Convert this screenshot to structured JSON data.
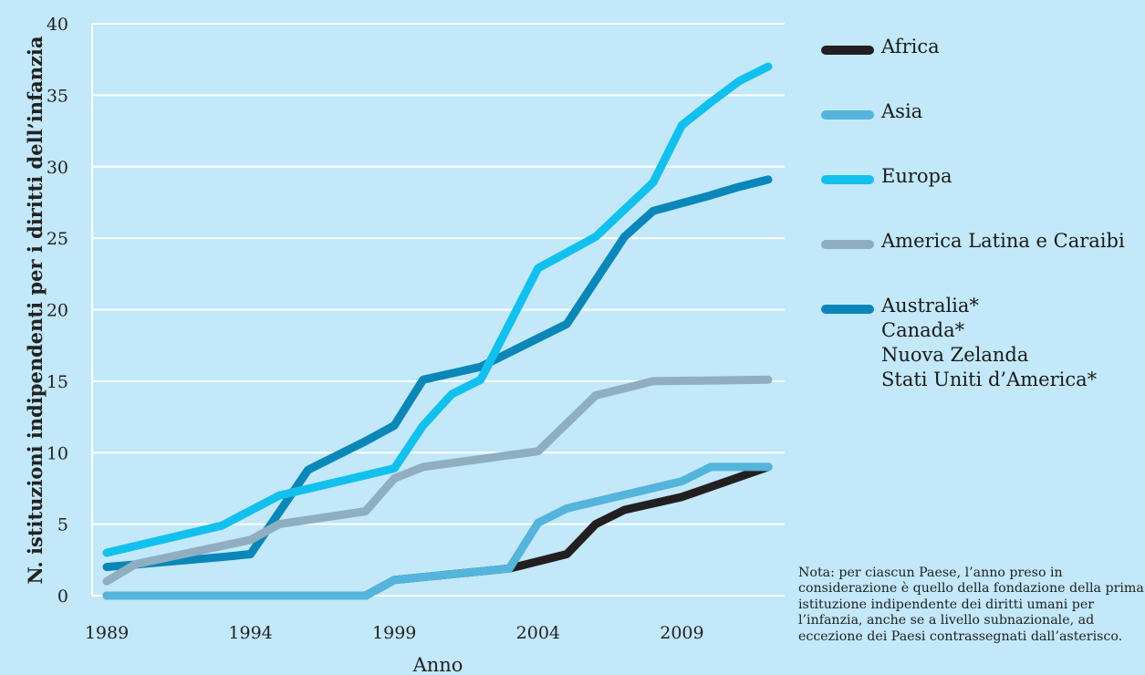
{
  "chart_data": {
    "type": "line",
    "ylabel": "N. istituzioni indipendenti per i diritti dell’infanzia",
    "xlabel": "Anno",
    "xlim": [
      1989,
      2012
    ],
    "ylim": [
      0,
      40
    ],
    "xticks": [
      1989,
      1994,
      1999,
      2004,
      2009
    ],
    "yticks": [
      0,
      5,
      10,
      15,
      20,
      25,
      30,
      35,
      40
    ],
    "grid": "horizontal",
    "legend_position": "right",
    "series": [
      {
        "name": "Australia*\nCanada*\nNuova Zelanda\nStati Uniti d’America*",
        "color": "#0a87b8",
        "x": [
          1989,
          1993,
          1994,
          1996,
          1998,
          1999,
          2000,
          2002,
          2004,
          2005,
          2007,
          2008,
          2010,
          2011,
          2012
        ],
        "y": [
          2,
          2.7,
          2.9,
          8.8,
          10.8,
          11.9,
          15.1,
          16,
          18,
          19,
          25.1,
          26.9,
          28,
          28.6,
          29.1
        ]
      },
      {
        "name": "America Latina e Caraibi",
        "color": "#8fafc1",
        "x": [
          1989,
          1990,
          1994,
          1995,
          1998,
          1999,
          2000,
          2004,
          2006,
          2007,
          2008,
          2012
        ],
        "y": [
          1,
          2.2,
          3.9,
          5,
          5.9,
          8.2,
          9,
          10.1,
          14,
          14.5,
          15,
          15.1
        ]
      },
      {
        "name": "Africa",
        "color": "#231f20",
        "x": [
          1989,
          1998,
          1999,
          2003,
          2005,
          2006,
          2007,
          2009,
          2012
        ],
        "y": [
          0,
          0,
          1.1,
          1.9,
          2.9,
          5,
          6,
          6.9,
          9
        ]
      },
      {
        "name": "Asia",
        "color": "#54b4dc",
        "x": [
          1989,
          1998,
          1999,
          2003,
          2004,
          2005,
          2009,
          2010,
          2012
        ],
        "y": [
          0,
          0,
          1.1,
          1.9,
          5.1,
          6.1,
          8,
          9,
          9
        ]
      },
      {
        "name": "Europa",
        "color": "#12c0ee",
        "x": [
          1989,
          1993,
          1995,
          1999,
          2000,
          2001,
          2002,
          2004,
          2006,
          2008,
          2009,
          2010,
          2011,
          2012
        ],
        "y": [
          3,
          4.9,
          7,
          8.9,
          11.9,
          14.1,
          15.1,
          22.9,
          25.1,
          28.9,
          32.9,
          34.5,
          36,
          37
        ]
      }
    ],
    "legend_order": [
      "Africa",
      "Asia",
      "Europa",
      "America Latina e Caraibi",
      "Australia*\nCanada*\nNuova Zelanda\nStati Uniti d’America*"
    ]
  },
  "note": "Nota: per ciascun Paese, l’anno preso in considerazione è quello della fondazione della prima istituzione indipendente dei diritti umani per l’infanzia, anche se a livello subnazionale, ad eccezione dei Paesi contrassegnati dall’asterisco."
}
